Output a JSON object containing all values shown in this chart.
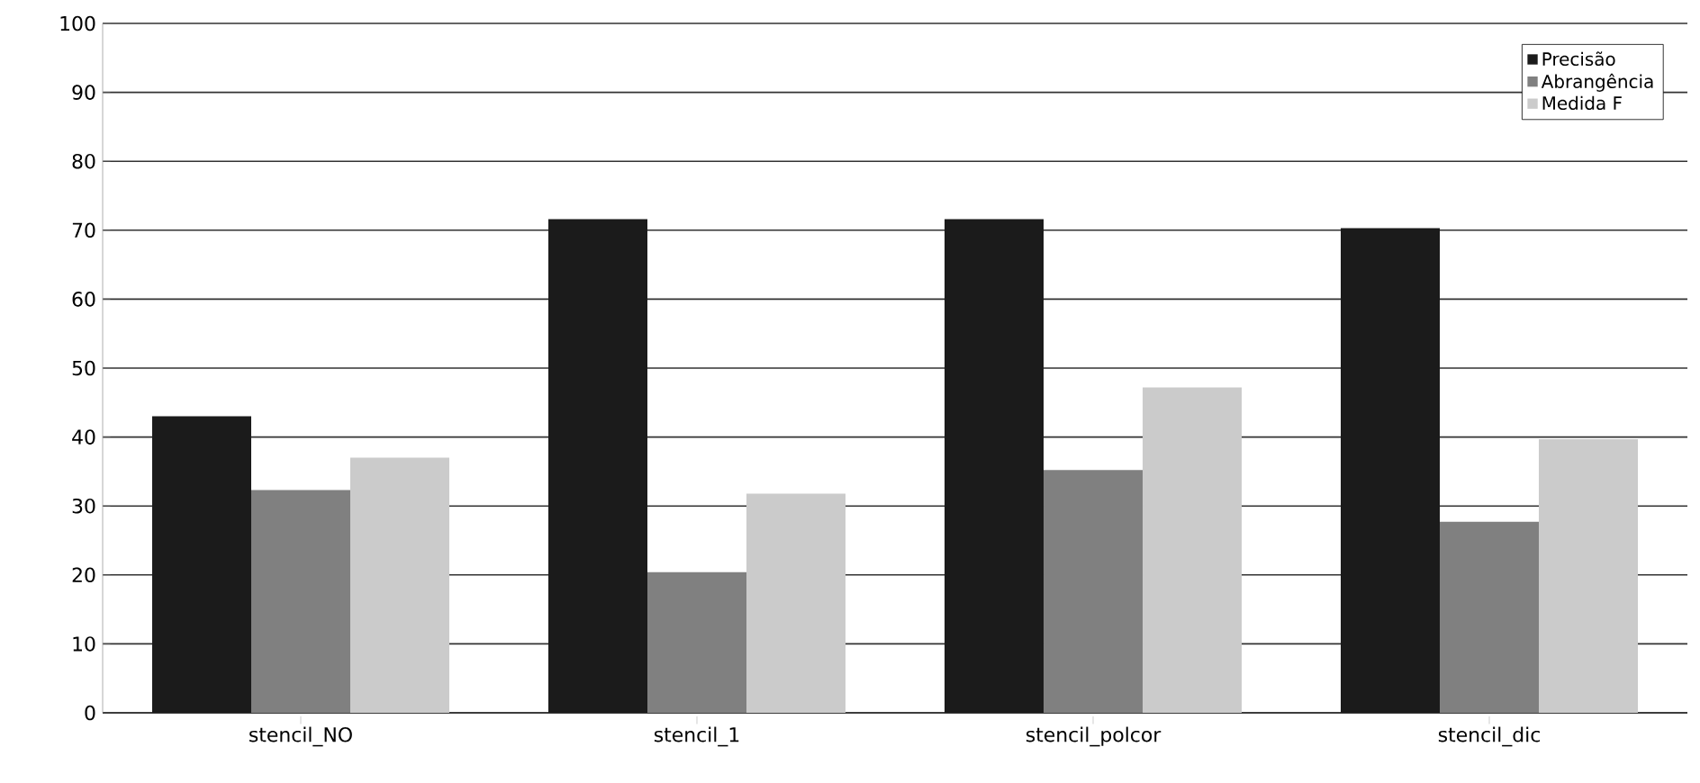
{
  "chart_data": {
    "type": "bar",
    "categories": [
      "stencil_NO",
      "stencil_1",
      "stencil_polcor",
      "stencil_dic"
    ],
    "series": [
      {
        "name": "Precisão",
        "color": "#1b1b1b",
        "values": [
          43.0,
          71.6,
          71.6,
          70.3
        ]
      },
      {
        "name": "Abrangência",
        "color": "#808080",
        "values": [
          32.3,
          20.4,
          35.2,
          27.7
        ]
      },
      {
        "name": "Medida F",
        "color": "#cbcbcb",
        "values": [
          37.0,
          31.8,
          47.2,
          39.7
        ]
      }
    ],
    "ylim": [
      0,
      100
    ],
    "yticks": [
      0,
      10,
      20,
      30,
      40,
      50,
      60,
      70,
      80,
      90,
      100
    ],
    "grid": "y",
    "legend": "top right"
  }
}
